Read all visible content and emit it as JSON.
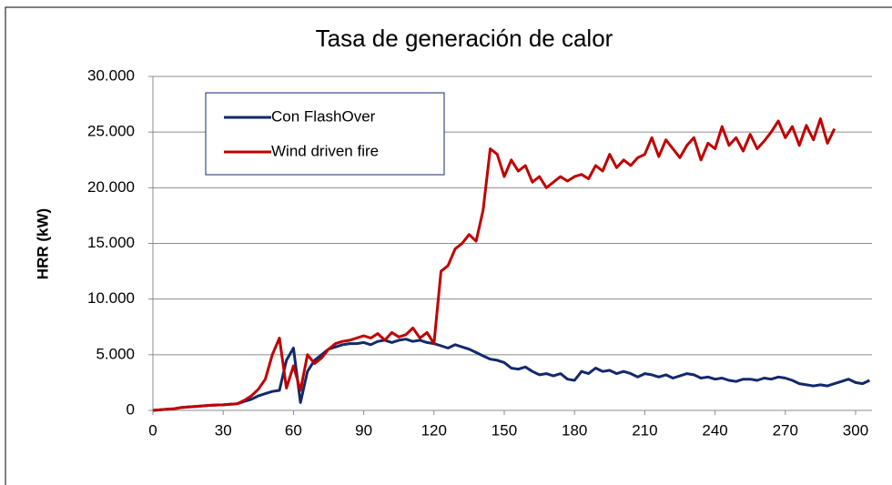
{
  "chart_data": {
    "type": "line",
    "title": "Tasa de generación de calor",
    "y_label": "HRR (kW)",
    "x": [
      0,
      3,
      6,
      9,
      12,
      15,
      18,
      21,
      24,
      27,
      30,
      33,
      36,
      39,
      42,
      45,
      48,
      51,
      54,
      57,
      60,
      63,
      66,
      69,
      72,
      75,
      78,
      81,
      84,
      87,
      90,
      93,
      96,
      99,
      102,
      105,
      108,
      111,
      114,
      117,
      120,
      123,
      126,
      129,
      132,
      135,
      138,
      141,
      144,
      147,
      150,
      153,
      156,
      159,
      162,
      165,
      168,
      171,
      174,
      177,
      180,
      183,
      186,
      189,
      192,
      195,
      198,
      201,
      204,
      207,
      210,
      213,
      216,
      219,
      222,
      225,
      228,
      231,
      234,
      237,
      240,
      243,
      246,
      249,
      252,
      255,
      258,
      261,
      264,
      267,
      270,
      273,
      276,
      279,
      282,
      285,
      288,
      291,
      294,
      297,
      300,
      303,
      306
    ],
    "series": [
      {
        "name": "Con FlashOver",
        "color": "#13296b",
        "values": [
          0,
          50,
          100,
          150,
          250,
          300,
          350,
          400,
          450,
          480,
          500,
          550,
          600,
          800,
          1000,
          1300,
          1500,
          1700,
          1800,
          4500,
          5600,
          700,
          3500,
          4500,
          5000,
          5500,
          5700,
          5900,
          6000,
          6000,
          6100,
          5900,
          6200,
          6300,
          6100,
          6300,
          6400,
          6200,
          6300,
          6100,
          6000,
          5800,
          5600,
          5900,
          5700,
          5500,
          5200,
          4900,
          4600,
          4500,
          4300,
          3800,
          3700,
          3900,
          3500,
          3200,
          3300,
          3100,
          3300,
          2800,
          2700,
          3500,
          3300,
          3800,
          3500,
          3600,
          3300,
          3500,
          3300,
          3000,
          3300,
          3200,
          3000,
          3200,
          2900,
          3100,
          3300,
          3200,
          2900,
          3000,
          2800,
          2900,
          2700,
          2600,
          2800,
          2800,
          2700,
          2900,
          2800,
          3000,
          2900,
          2700,
          2400,
          2300,
          2200,
          2300,
          2200,
          2400,
          2600,
          2800,
          2500,
          2400,
          2700
        ]
      },
      {
        "name": "Wind driven fire",
        "color": "#c00000",
        "values": [
          0,
          50,
          100,
          150,
          250,
          300,
          350,
          400,
          450,
          480,
          500,
          550,
          600,
          900,
          1300,
          1900,
          2800,
          5000,
          6500,
          2000,
          4000,
          1800,
          5000,
          4200,
          4700,
          5500,
          6000,
          6200,
          6300,
          6500,
          6700,
          6500,
          6900,
          6300,
          7000,
          6600,
          6800,
          7400,
          6500,
          7000,
          6000,
          12500,
          13000,
          14500,
          15000,
          15800,
          15200,
          18000,
          23500,
          23000,
          21000,
          22500,
          21500,
          22000,
          20500,
          21000,
          20000,
          20500,
          21000,
          20600,
          21000,
          21200,
          20800,
          22000,
          21500,
          23000,
          21800,
          22500,
          22000,
          22700,
          23000,
          24500,
          22800,
          24300,
          23500,
          22700,
          23800,
          24500,
          22500,
          24000,
          23500,
          25500,
          23800,
          24500,
          23300,
          24800,
          23500,
          24200,
          25000,
          26000,
          24500,
          25500,
          23800,
          25600,
          24300,
          26200,
          24000,
          25300,
          null,
          null,
          null,
          null,
          null
        ]
      }
    ],
    "xlim": [
      0,
      307
    ],
    "xticks": [
      0,
      30,
      60,
      90,
      120,
      150,
      180,
      210,
      240,
      270,
      300
    ],
    "ylim": [
      0,
      30000
    ],
    "yticks": [
      0,
      {
        "value": 5000,
        "label": "5.000"
      },
      {
        "value": 10000,
        "label": "10.000"
      },
      {
        "value": 15000,
        "label": "15.000"
      },
      {
        "value": 20000,
        "label": "20.000"
      },
      {
        "value": 25000,
        "label": "25.000"
      },
      {
        "value": 30000,
        "label": "30.000"
      }
    ],
    "grid": true,
    "legend": "upper left"
  }
}
